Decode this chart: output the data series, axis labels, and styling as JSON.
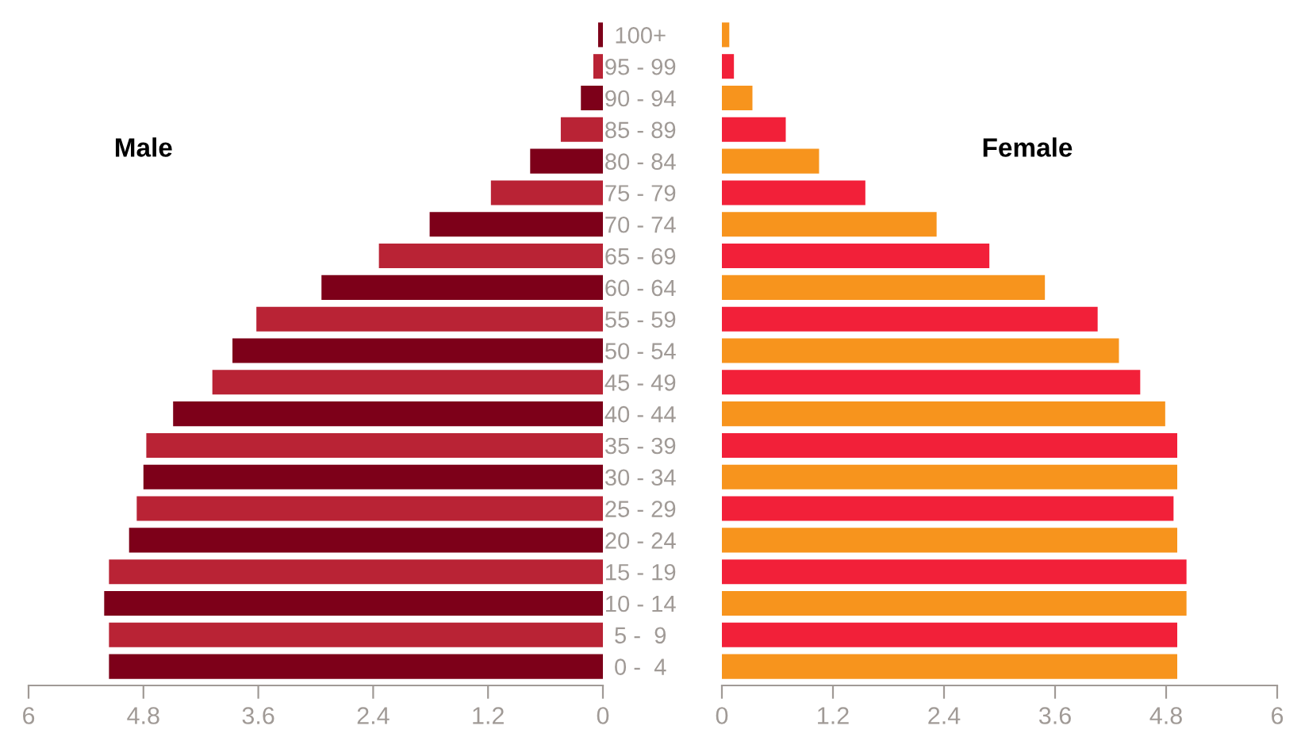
{
  "chart_data": [
    {
      "type": "bar",
      "orientation": "horizontal",
      "title": "Male",
      "categories": [
        "100+",
        "95 - 99",
        "90 - 94",
        "85 - 89",
        "80 - 84",
        "75 - 79",
        "70 - 74",
        "65 - 69",
        "60 - 64",
        "55 - 59",
        "50 - 54",
        "45 - 49",
        "40 - 44",
        "35 - 39",
        "30 - 34",
        "25 - 29",
        "20 - 24",
        "15 - 19",
        "10 - 14",
        "5 -  9",
        "0 -  4"
      ],
      "values": [
        0.05,
        0.1,
        0.23,
        0.44,
        0.76,
        1.17,
        1.81,
        2.34,
        2.94,
        3.62,
        3.87,
        4.08,
        4.49,
        4.77,
        4.8,
        4.87,
        4.95,
        5.16,
        5.21,
        5.16,
        5.16
      ],
      "colors": [
        "#7d0019",
        "#b92335",
        "#7d0019",
        "#b92335",
        "#7d0019",
        "#b92335",
        "#7d0019",
        "#b92335",
        "#7d0019",
        "#b92335",
        "#7d0019",
        "#b92335",
        "#7d0019",
        "#b92335",
        "#7d0019",
        "#b92335",
        "#7d0019",
        "#b92335",
        "#7d0019",
        "#b92335",
        "#7d0019"
      ],
      "xlim": [
        6,
        0
      ],
      "xticks": [
        6,
        4.8,
        3.6,
        2.4,
        1.2,
        0
      ],
      "tick_labels": "x",
      "grid": false,
      "legend": false
    },
    {
      "type": "bar",
      "orientation": "horizontal",
      "title": "Female",
      "categories": [
        "100+",
        "95 - 99",
        "90 - 94",
        "85 - 89",
        "80 - 84",
        "75 - 79",
        "70 - 74",
        "65 - 69",
        "60 - 64",
        "55 - 59",
        "50 - 54",
        "45 - 49",
        "40 - 44",
        "35 - 39",
        "30 - 34",
        "25 - 29",
        "20 - 24",
        "15 - 19",
        "10 - 14",
        "5 -  9",
        "0 -  4"
      ],
      "values": [
        0.08,
        0.13,
        0.33,
        0.69,
        1.05,
        1.55,
        2.32,
        2.89,
        3.49,
        4.06,
        4.29,
        4.52,
        4.79,
        4.92,
        4.92,
        4.88,
        4.92,
        5.02,
        5.02,
        4.92,
        4.92
      ],
      "colors": [
        "#f7941d",
        "#f22039",
        "#f7941d",
        "#f22039",
        "#f7941d",
        "#f22039",
        "#f7941d",
        "#f22039",
        "#f7941d",
        "#f22039",
        "#f7941d",
        "#f22039",
        "#f7941d",
        "#f22039",
        "#f7941d",
        "#f22039",
        "#f7941d",
        "#f22039",
        "#f7941d",
        "#f22039",
        "#f7941d"
      ],
      "xlim": [
        0,
        6
      ],
      "xticks": [
        0,
        1.2,
        2.4,
        3.6,
        4.8,
        6
      ],
      "grid": false,
      "legend": false
    }
  ]
}
